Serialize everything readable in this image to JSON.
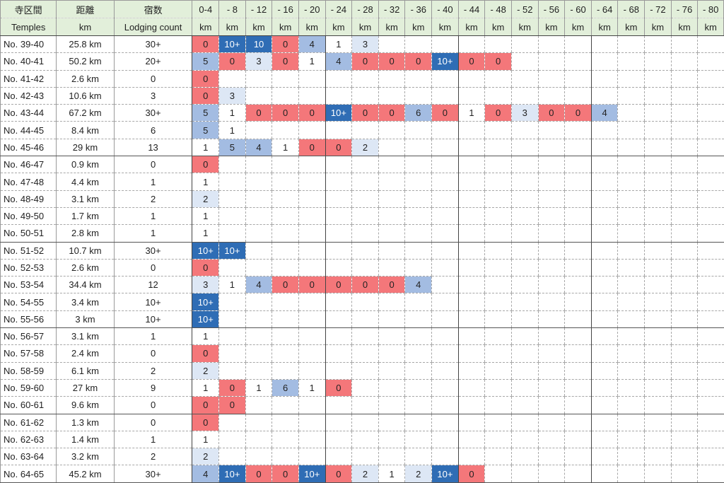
{
  "header": {
    "row1": [
      "寺区間",
      "距離",
      "宿数",
      "0-4",
      "- 8",
      "- 12",
      "- 16",
      "- 20",
      "- 24",
      "- 28",
      "- 32",
      "- 36",
      "- 40",
      "- 44",
      "- 48",
      "- 52",
      "- 56",
      "- 60",
      "- 64",
      "- 68",
      "- 72",
      "- 76",
      "- 80"
    ],
    "row2": [
      "Temples",
      "km",
      "Lodging count",
      "km",
      "km",
      "km",
      "km",
      "km",
      "km",
      "km",
      "km",
      "km",
      "km",
      "km",
      "km",
      "km",
      "km",
      "km",
      "km",
      "km",
      "km",
      "km",
      "km"
    ]
  },
  "colors": {
    "zero": "#f4777a",
    "low": "#dde7f5",
    "mid": "#a3bce2",
    "high": "#2f6db5",
    "header": "#e2efda"
  },
  "rows": [
    {
      "temples": "No. 39-40",
      "distance": "25.8 km",
      "lodging": "30+",
      "buckets": [
        "0",
        "10+",
        "10",
        "0",
        "4",
        "1",
        "3"
      ]
    },
    {
      "temples": "No. 40-41",
      "distance": "50.2 km",
      "lodging": "20+",
      "buckets": [
        "5",
        "0",
        "3",
        "0",
        "1",
        "4",
        "0",
        "0",
        "0",
        "10+",
        "0",
        "0"
      ]
    },
    {
      "temples": "No. 41-42",
      "distance": "2.6 km",
      "lodging": "0",
      "buckets": [
        "0"
      ]
    },
    {
      "temples": "No. 42-43",
      "distance": "10.6 km",
      "lodging": "3",
      "buckets": [
        "0",
        "3"
      ]
    },
    {
      "temples": "No. 43-44",
      "distance": "67.2 km",
      "lodging": "30+",
      "buckets": [
        "5",
        "1",
        "0",
        "0",
        "0",
        "10+",
        "0",
        "0",
        "6",
        "0",
        "1",
        "0",
        "3",
        "0",
        "0",
        "4"
      ]
    },
    {
      "temples": "No. 44-45",
      "distance": "8.4 km",
      "lodging": "6",
      "buckets": [
        "5",
        "1"
      ]
    },
    {
      "temples": "No. 45-46",
      "distance": "29 km",
      "lodging": "13",
      "buckets": [
        "1",
        "5",
        "4",
        "1",
        "0",
        "0",
        "2"
      ]
    },
    {
      "temples": "No. 46-47",
      "distance": "0.9 km",
      "lodging": "0",
      "buckets": [
        "0"
      ]
    },
    {
      "temples": "No. 47-48",
      "distance": "4.4 km",
      "lodging": "1",
      "buckets": [
        "1"
      ]
    },
    {
      "temples": "No. 48-49",
      "distance": "3.1 km",
      "lodging": "2",
      "buckets": [
        "2"
      ]
    },
    {
      "temples": "No. 49-50",
      "distance": "1.7 km",
      "lodging": "1",
      "buckets": [
        "1"
      ]
    },
    {
      "temples": "No. 50-51",
      "distance": "2.8 km",
      "lodging": "1",
      "buckets": [
        "1"
      ]
    },
    {
      "temples": "No. 51-52",
      "distance": "10.7 km",
      "lodging": "30+",
      "buckets": [
        "10+",
        "10+"
      ]
    },
    {
      "temples": "No. 52-53",
      "distance": "2.6 km",
      "lodging": "0",
      "buckets": [
        "0"
      ]
    },
    {
      "temples": "No. 53-54",
      "distance": "34.4 km",
      "lodging": "12",
      "buckets": [
        "3",
        "1",
        "4",
        "0",
        "0",
        "0",
        "0",
        "0",
        "4"
      ]
    },
    {
      "temples": "No. 54-55",
      "distance": "3.4 km",
      "lodging": "10+",
      "buckets": [
        "10+"
      ]
    },
    {
      "temples": "No. 55-56",
      "distance": "3 km",
      "lodging": "10+",
      "buckets": [
        "10+"
      ]
    },
    {
      "temples": "No. 56-57",
      "distance": "3.1 km",
      "lodging": "1",
      "buckets": [
        "1"
      ]
    },
    {
      "temples": "No. 57-58",
      "distance": "2.4 km",
      "lodging": "0",
      "buckets": [
        "0"
      ]
    },
    {
      "temples": "No. 58-59",
      "distance": "6.1 km",
      "lodging": "2",
      "buckets": [
        "2"
      ]
    },
    {
      "temples": "No. 59-60",
      "distance": "27 km",
      "lodging": "9",
      "buckets": [
        "1",
        "0",
        "1",
        "6",
        "1",
        "0"
      ]
    },
    {
      "temples": "No. 60-61",
      "distance": "9.6 km",
      "lodging": "0",
      "buckets": [
        "0",
        "0"
      ]
    },
    {
      "temples": "No. 61-62",
      "distance": "1.3 km",
      "lodging": "0",
      "buckets": [
        "0"
      ]
    },
    {
      "temples": "No. 62-63",
      "distance": "1.4 km",
      "lodging": "1",
      "buckets": [
        "1"
      ]
    },
    {
      "temples": "No. 63-64",
      "distance": "3.2 km",
      "lodging": "2",
      "buckets": [
        "2"
      ]
    },
    {
      "temples": "No. 64-65",
      "distance": "45.2 km",
      "lodging": "30+",
      "buckets": [
        "4",
        "10+",
        "0",
        "0",
        "10+",
        "0",
        "2",
        "1",
        "2",
        "10+",
        "0"
      ]
    }
  ]
}
